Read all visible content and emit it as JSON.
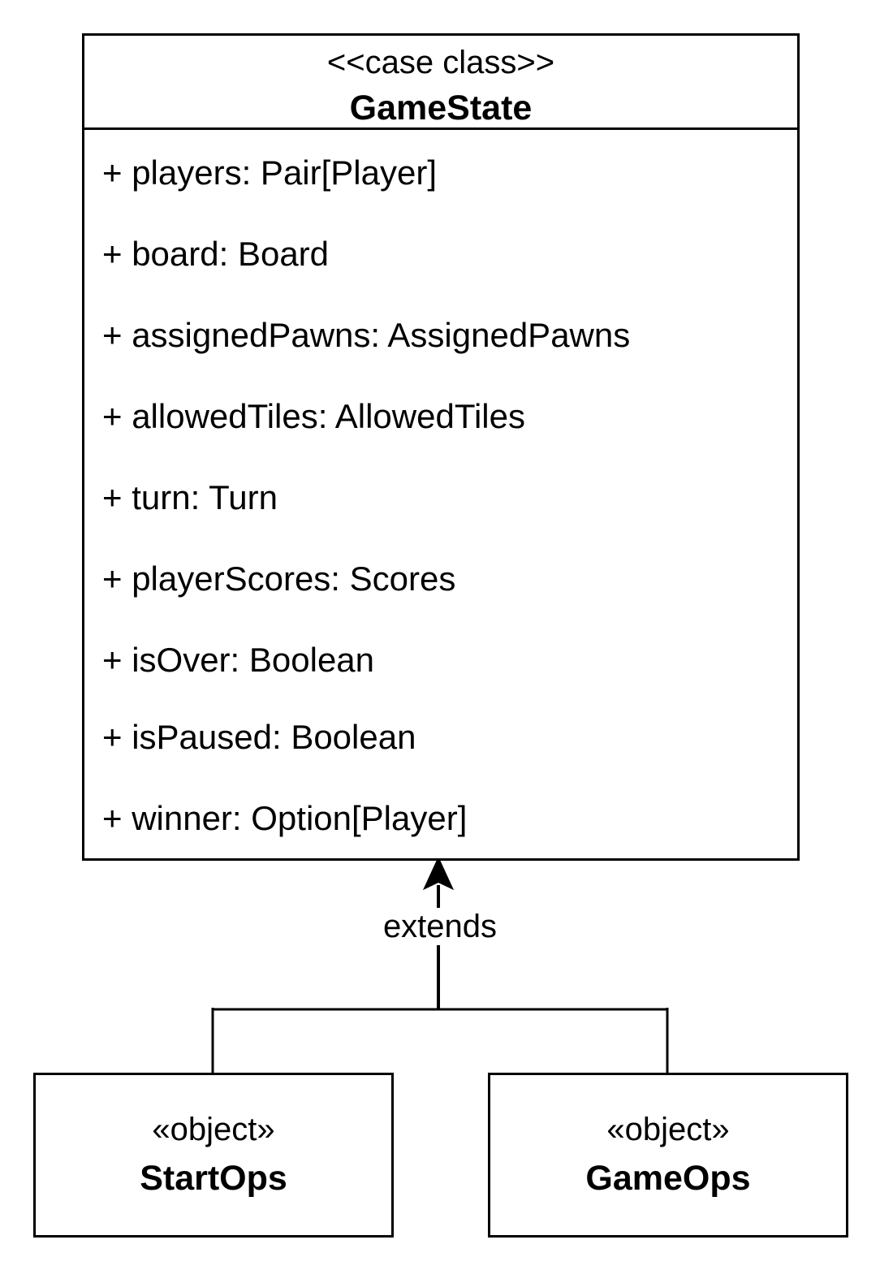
{
  "game_state": {
    "stereotype": "<<case class>>",
    "name": "GameState",
    "attributes": [
      "+ players: Pair[Player]",
      "+ board: Board",
      "+ assignedPawns: AssignedPawns",
      "+ allowedTiles: AllowedTiles",
      "+ turn: Turn",
      "+ playerScores: Scores",
      "+ isOver: Boolean",
      "+ isPaused: Boolean",
      "+ winner: Option[Player]"
    ]
  },
  "relation": {
    "label": "extends"
  },
  "objects": [
    {
      "stereotype": "«object»",
      "name": "StartOps"
    },
    {
      "stereotype": "«object»",
      "name": "GameOps"
    }
  ]
}
